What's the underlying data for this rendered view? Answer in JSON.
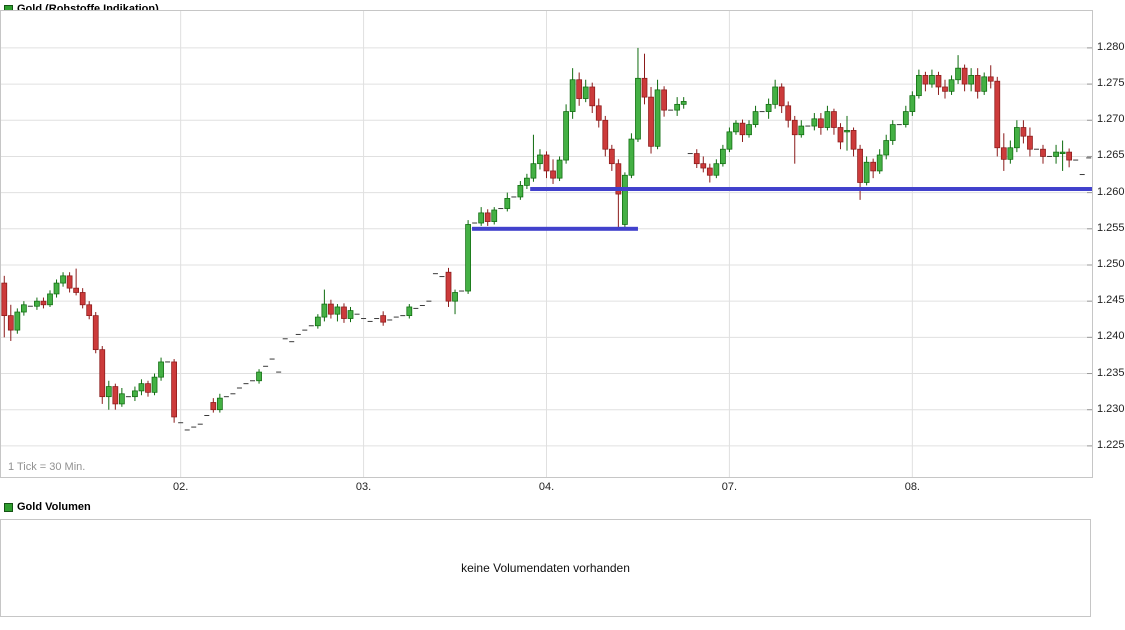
{
  "main_legend": {
    "label": "Gold (Rohstoffe Indikation)",
    "swatch_color": "#2f9e2f"
  },
  "volume_legend": {
    "label": "Gold Volumen",
    "swatch_color": "#2f9e2f"
  },
  "price_chart": {
    "tick_note": "1 Tick = 30 Min."
  },
  "volume_panel": {
    "empty_message": "keine Volumendaten vorhanden"
  },
  "chart_data": {
    "type": "candlestick",
    "title": "Gold (Rohstoffe Indikation)",
    "tick_interval": "1 Tick = 30 Min.",
    "grid": true,
    "y_axis_side": "right",
    "ylim": [
      1.2207,
      1.2851
    ],
    "y_ticks": [
      {
        "label": "1.280",
        "value": 1.28
      },
      {
        "label": "1.275",
        "value": 1.275
      },
      {
        "label": "1.270",
        "value": 1.27
      },
      {
        "label": "1.265",
        "value": 1.265
      },
      {
        "label": "1.260",
        "value": 1.26
      },
      {
        "label": "1.255",
        "value": 1.255
      },
      {
        "label": "1.250",
        "value": 1.25
      },
      {
        "label": "1.245",
        "value": 1.245
      },
      {
        "label": "1.240",
        "value": 1.24
      },
      {
        "label": "1.235",
        "value": 1.235
      },
      {
        "label": "1.230",
        "value": 1.23
      },
      {
        "label": "1.225",
        "value": 1.225
      }
    ],
    "x_days": [
      {
        "label": "02.",
        "index": 27
      },
      {
        "label": "03.",
        "index": 55
      },
      {
        "label": "04.",
        "index": 83
      },
      {
        "label": "07.",
        "index": 111
      },
      {
        "label": "08.",
        "index": 139
      }
    ],
    "support_lines": [
      {
        "price": 1.255,
        "from_index": 71.6,
        "to_index": 97
      },
      {
        "price": 1.2605,
        "from_index": 80.5,
        "to_index": 172
      }
    ],
    "colors": {
      "up": "#44b044",
      "up_border": "#0e6b0e",
      "down": "#cc3b3b",
      "down_border": "#8b1a1a",
      "neutral": "#3a3a3a",
      "support": "#4141cc",
      "grid": "#e0e0e0"
    },
    "candles": [
      [
        1.2475,
        1.2485,
        1.24,
        1.243
      ],
      [
        1.243,
        1.2445,
        1.2395,
        1.241
      ],
      [
        1.241,
        1.244,
        1.2405,
        1.2435
      ],
      [
        1.2435,
        1.245,
        1.243,
        1.2445
      ],
      [
        1.2443,
        1.2443,
        1.2443,
        1.2443
      ],
      [
        1.2443,
        1.2455,
        1.2438,
        1.245
      ],
      [
        1.245,
        1.2455,
        1.244,
        1.2445
      ],
      [
        1.2445,
        1.2465,
        1.2442,
        1.246
      ],
      [
        1.246,
        1.248,
        1.2455,
        1.2475
      ],
      [
        1.2475,
        1.249,
        1.247,
        1.2485
      ],
      [
        1.2485,
        1.249,
        1.2462,
        1.2468
      ],
      [
        1.2468,
        1.2495,
        1.2458,
        1.2462
      ],
      [
        1.2462,
        1.2468,
        1.244,
        1.2445
      ],
      [
        1.2445,
        1.245,
        1.2425,
        1.243
      ],
      [
        1.243,
        1.2435,
        1.2378,
        1.2383
      ],
      [
        1.2383,
        1.2388,
        1.2308,
        1.2318
      ],
      [
        1.2318,
        1.234,
        1.23,
        1.2332
      ],
      [
        1.2332,
        1.2336,
        1.23,
        1.2308
      ],
      [
        1.2308,
        1.233,
        1.2304,
        1.2322
      ],
      [
        1.2318,
        1.2318,
        1.2318,
        1.2318
      ],
      [
        1.2318,
        1.2332,
        1.2312,
        1.2326
      ],
      [
        1.2326,
        1.2342,
        1.232,
        1.2336
      ],
      [
        1.2336,
        1.234,
        1.2318,
        1.2324
      ],
      [
        1.2324,
        1.235,
        1.232,
        1.2345
      ],
      [
        1.2345,
        1.2372,
        1.234,
        1.2366
      ],
      [
        1.2366,
        1.2366,
        1.2366,
        1.2366
      ],
      [
        1.2366,
        1.237,
        1.2282,
        1.229
      ],
      [
        1.2282,
        1.2282,
        1.2282,
        1.2282
      ],
      [
        1.2272,
        1.2272,
        1.2272,
        1.2272
      ],
      [
        1.2276,
        1.2276,
        1.2276,
        1.2276
      ],
      [
        1.228,
        1.228,
        1.228,
        1.228
      ],
      [
        1.2292,
        1.2292,
        1.2292,
        1.2292
      ],
      [
        1.231,
        1.2316,
        1.2296,
        1.23
      ],
      [
        1.23,
        1.2322,
        1.2296,
        1.2316
      ],
      [
        1.2318,
        1.2318,
        1.2318,
        1.2318
      ],
      [
        1.2322,
        1.2322,
        1.2322,
        1.2322
      ],
      [
        1.233,
        1.233,
        1.233,
        1.233
      ],
      [
        1.2336,
        1.2336,
        1.2336,
        1.2336
      ],
      [
        1.234,
        1.234,
        1.234,
        1.234
      ],
      [
        1.234,
        1.2356,
        1.2336,
        1.2352
      ],
      [
        1.236,
        1.236,
        1.236,
        1.236
      ],
      [
        1.237,
        1.237,
        1.237,
        1.237
      ],
      [
        1.2352,
        1.2352,
        1.2352,
        1.2352
      ],
      [
        1.2398,
        1.2398,
        1.2398,
        1.2398
      ],
      [
        1.2394,
        1.2394,
        1.2394,
        1.2394
      ],
      [
        1.2404,
        1.2404,
        1.2404,
        1.2404
      ],
      [
        1.241,
        1.241,
        1.241,
        1.241
      ],
      [
        1.2416,
        1.2416,
        1.2416,
        1.2416
      ],
      [
        1.2416,
        1.2432,
        1.2412,
        1.2428
      ],
      [
        1.2428,
        1.2466,
        1.2422,
        1.2446
      ],
      [
        1.2446,
        1.2452,
        1.2426,
        1.2432
      ],
      [
        1.2432,
        1.2446,
        1.2422,
        1.2442
      ],
      [
        1.2442,
        1.2447,
        1.242,
        1.2426
      ],
      [
        1.2426,
        1.2442,
        1.2421,
        1.2437
      ],
      [
        1.2432,
        1.2432,
        1.2432,
        1.2432
      ],
      [
        1.2426,
        1.2426,
        1.2426,
        1.2426
      ],
      [
        1.2422,
        1.2422,
        1.2422,
        1.2422
      ],
      [
        1.2426,
        1.2426,
        1.2426,
        1.2426
      ],
      [
        1.243,
        1.2436,
        1.2416,
        1.2421
      ],
      [
        1.2424,
        1.2424,
        1.2424,
        1.2424
      ],
      [
        1.2428,
        1.2428,
        1.2428,
        1.2428
      ],
      [
        1.243,
        1.243,
        1.243,
        1.243
      ],
      [
        1.243,
        1.2446,
        1.2426,
        1.2442
      ],
      [
        1.244,
        1.244,
        1.244,
        1.244
      ],
      [
        1.2444,
        1.2444,
        1.2444,
        1.2444
      ],
      [
        1.245,
        1.245,
        1.245,
        1.245
      ],
      [
        1.2488,
        1.2488,
        1.2488,
        1.2488
      ],
      [
        1.2484,
        1.2484,
        1.2484,
        1.2484
      ],
      [
        1.249,
        1.2496,
        1.2442,
        1.245
      ],
      [
        1.245,
        1.2466,
        1.2432,
        1.2462
      ],
      [
        1.2464,
        1.2464,
        1.2464,
        1.2464
      ],
      [
        1.2464,
        1.2562,
        1.246,
        1.2556
      ],
      [
        1.2558,
        1.2558,
        1.2558,
        1.2558
      ],
      [
        1.2558,
        1.258,
        1.2554,
        1.2572
      ],
      [
        1.2572,
        1.2577,
        1.2554,
        1.256
      ],
      [
        1.256,
        1.258,
        1.2556,
        1.2576
      ],
      [
        1.2578,
        1.2578,
        1.2578,
        1.2578
      ],
      [
        1.2578,
        1.26,
        1.2574,
        1.2592
      ],
      [
        1.2594,
        1.2594,
        1.2594,
        1.2594
      ],
      [
        1.2594,
        1.2616,
        1.259,
        1.261
      ],
      [
        1.261,
        1.2626,
        1.2605,
        1.262
      ],
      [
        1.262,
        1.268,
        1.2615,
        1.264
      ],
      [
        1.264,
        1.266,
        1.2632,
        1.2652
      ],
      [
        1.2652,
        1.2657,
        1.262,
        1.263
      ],
      [
        1.263,
        1.2646,
        1.2612,
        1.262
      ],
      [
        1.262,
        1.265,
        1.2616,
        1.2645
      ],
      [
        1.2645,
        1.2722,
        1.264,
        1.2712
      ],
      [
        1.2712,
        1.2772,
        1.2702,
        1.2756
      ],
      [
        1.2756,
        1.2766,
        1.272,
        1.273
      ],
      [
        1.273,
        1.2756,
        1.2725,
        1.2746
      ],
      [
        1.2746,
        1.2752,
        1.271,
        1.272
      ],
      [
        1.272,
        1.273,
        1.269,
        1.27
      ],
      [
        1.27,
        1.2706,
        1.265,
        1.266
      ],
      [
        1.266,
        1.2666,
        1.263,
        1.264
      ],
      [
        1.264,
        1.2646,
        1.255,
        1.2598
      ],
      [
        1.2556,
        1.2628,
        1.255,
        1.2624
      ],
      [
        1.2624,
        1.2682,
        1.262,
        1.2674
      ],
      [
        1.2674,
        1.28,
        1.267,
        1.2758
      ],
      [
        1.2758,
        1.2792,
        1.2722,
        1.2732
      ],
      [
        1.2732,
        1.2746,
        1.2654,
        1.2664
      ],
      [
        1.2664,
        1.2756,
        1.266,
        1.2742
      ],
      [
        1.2742,
        1.2747,
        1.2705,
        1.2714
      ],
      [
        1.2714,
        1.2714,
        1.2714,
        1.2714
      ],
      [
        1.2714,
        1.2732,
        1.2706,
        1.2722
      ],
      [
        1.2722,
        1.2732,
        1.2716,
        1.2726
      ],
      [
        1.2654,
        1.2654,
        1.2654,
        1.2654
      ],
      [
        1.2654,
        1.266,
        1.2634,
        1.264
      ],
      [
        1.264,
        1.265,
        1.2628,
        1.2634
      ],
      [
        1.2634,
        1.264,
        1.2614,
        1.2624
      ],
      [
        1.2624,
        1.2646,
        1.262,
        1.264
      ],
      [
        1.264,
        1.2666,
        1.2636,
        1.266
      ],
      [
        1.266,
        1.269,
        1.2656,
        1.2684
      ],
      [
        1.2684,
        1.27,
        1.268,
        1.2696
      ],
      [
        1.2696,
        1.2701,
        1.267,
        1.268
      ],
      [
        1.268,
        1.27,
        1.2676,
        1.2694
      ],
      [
        1.2694,
        1.272,
        1.269,
        1.2712
      ],
      [
        1.2712,
        1.2712,
        1.2712,
        1.2712
      ],
      [
        1.2712,
        1.273,
        1.2702,
        1.2722
      ],
      [
        1.2722,
        1.2756,
        1.2716,
        1.2746
      ],
      [
        1.2746,
        1.2751,
        1.271,
        1.272
      ],
      [
        1.272,
        1.2726,
        1.269,
        1.27
      ],
      [
        1.27,
        1.2706,
        1.264,
        1.268
      ],
      [
        1.268,
        1.27,
        1.2676,
        1.2692
      ],
      [
        1.2692,
        1.2692,
        1.2692,
        1.2692
      ],
      [
        1.2692,
        1.271,
        1.2686,
        1.2702
      ],
      [
        1.2702,
        1.271,
        1.268,
        1.269
      ],
      [
        1.269,
        1.272,
        1.2686,
        1.2712
      ],
      [
        1.2712,
        1.2716,
        1.268,
        1.269
      ],
      [
        1.269,
        1.2696,
        1.266,
        1.267
      ],
      [
        1.2685,
        1.2706,
        1.2658,
        1.2686
      ],
      [
        1.2686,
        1.269,
        1.265,
        1.266
      ],
      [
        1.266,
        1.2666,
        1.259,
        1.2614
      ],
      [
        1.2614,
        1.265,
        1.261,
        1.2642
      ],
      [
        1.2642,
        1.2647,
        1.262,
        1.263
      ],
      [
        1.263,
        1.266,
        1.2626,
        1.2652
      ],
      [
        1.2652,
        1.268,
        1.2646,
        1.2672
      ],
      [
        1.2672,
        1.27,
        1.2666,
        1.2694
      ],
      [
        1.2694,
        1.2694,
        1.2694,
        1.2694
      ],
      [
        1.2694,
        1.272,
        1.269,
        1.2712
      ],
      [
        1.2712,
        1.274,
        1.2706,
        1.2734
      ],
      [
        1.2734,
        1.277,
        1.273,
        1.2762
      ],
      [
        1.2762,
        1.2767,
        1.274,
        1.275
      ],
      [
        1.275,
        1.277,
        1.2745,
        1.2762
      ],
      [
        1.2762,
        1.2767,
        1.2735,
        1.2746
      ],
      [
        1.2746,
        1.2756,
        1.273,
        1.274
      ],
      [
        1.274,
        1.2762,
        1.2735,
        1.2756
      ],
      [
        1.2756,
        1.279,
        1.275,
        1.2772
      ],
      [
        1.2772,
        1.2777,
        1.274,
        1.275
      ],
      [
        1.275,
        1.2772,
        1.274,
        1.2762
      ],
      [
        1.2762,
        1.2772,
        1.273,
        1.274
      ],
      [
        1.274,
        1.2766,
        1.2735,
        1.276
      ],
      [
        1.276,
        1.2776,
        1.2744,
        1.2754
      ],
      [
        1.2754,
        1.276,
        1.265,
        1.2662
      ],
      [
        1.2662,
        1.2682,
        1.263,
        1.2646
      ],
      [
        1.2646,
        1.2672,
        1.264,
        1.2662
      ],
      [
        1.2662,
        1.27,
        1.2656,
        1.269
      ],
      [
        1.269,
        1.27,
        1.2668,
        1.2678
      ],
      [
        1.2678,
        1.269,
        1.265,
        1.266
      ],
      [
        1.266,
        1.266,
        1.266,
        1.266
      ],
      [
        1.266,
        1.2666,
        1.264,
        1.265
      ],
      [
        1.265,
        1.265,
        1.265,
        1.265
      ],
      [
        1.265,
        1.2666,
        1.264,
        1.2656
      ],
      [
        1.2656,
        1.2672,
        1.263,
        1.2656
      ],
      [
        1.2656,
        1.2661,
        1.2635,
        1.2645
      ],
      [
        1.2645,
        1.2645,
        1.2645,
        1.2645
      ],
      [
        1.2625,
        1.2625,
        1.2625,
        1.2625
      ],
      [
        1.2648,
        1.2648,
        1.2648,
        1.2648
      ]
    ]
  }
}
